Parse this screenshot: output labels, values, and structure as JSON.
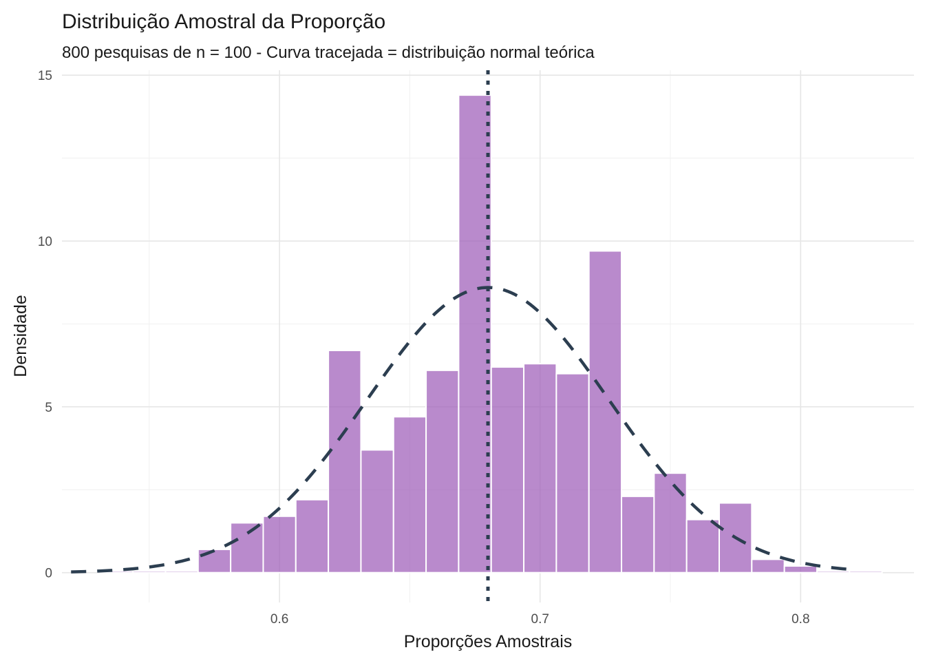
{
  "chart_data": {
    "type": "bar",
    "title": "Distribuição Amostral da Proporção",
    "subtitle": "800 pesquisas de n = 100 - Curva tracejada = distribuição normal teórica",
    "xlabel": "Proporções Amostrais",
    "ylabel": "Densidade",
    "xlim": [
      0.5165,
      0.8435
    ],
    "ylim": [
      -0.9,
      15.15
    ],
    "x_ticks": [
      0.6,
      0.7,
      0.8
    ],
    "x_tick_labels": [
      "0.6",
      "0.7",
      "0.8"
    ],
    "y_ticks": [
      0,
      5,
      10,
      15
    ],
    "y_tick_labels": [
      "0",
      "5",
      "10",
      "15"
    ],
    "grid": true,
    "bin_width": 0.0125,
    "histogram": {
      "bin_centers": [
        0.5375,
        0.55,
        0.5625,
        0.575,
        0.5875,
        0.6,
        0.6125,
        0.625,
        0.6375,
        0.65,
        0.6625,
        0.675,
        0.6875,
        0.7,
        0.7125,
        0.725,
        0.7375,
        0.75,
        0.7625,
        0.775,
        0.7875,
        0.8,
        0.8125,
        0.825
      ],
      "density": [
        0.05,
        0.05,
        0.05,
        0.7,
        1.5,
        1.7,
        2.2,
        6.7,
        3.7,
        4.7,
        6.1,
        14.4,
        6.2,
        6.3,
        6.0,
        9.7,
        2.3,
        3.0,
        1.6,
        2.1,
        0.4,
        0.2,
        0.05,
        0.05
      ],
      "color": "#9b59b6"
    },
    "normal_curve": {
      "mean": 0.68,
      "sd": 0.0464,
      "x_range": [
        0.52,
        0.82
      ],
      "style": "dashed",
      "color": "#2c3e50"
    },
    "mean_line": {
      "x": 0.68,
      "style": "dotted",
      "color": "#2c3e50"
    }
  }
}
